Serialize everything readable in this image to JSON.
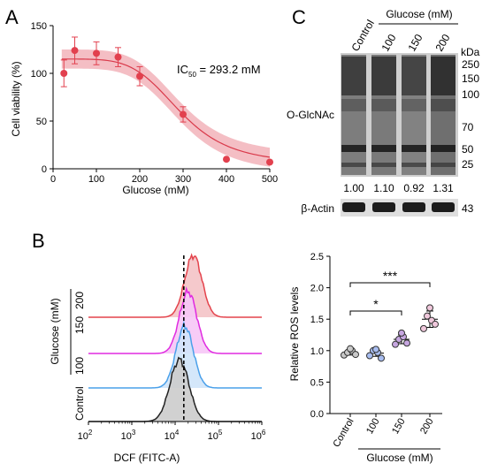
{
  "panels": {
    "A": "A",
    "B": "B",
    "C": "C"
  },
  "colors": {
    "fit_line": "#d9394a",
    "fit_band": "#f2b3ba",
    "point": "#e2404e",
    "hist_red": "#e4434c",
    "hist_red_fill": "#f4c3c6",
    "hist_magenta": "#e02be0",
    "hist_magenta_fill": "#f6c6f6",
    "hist_blue": "#4aa0ea",
    "hist_blue_fill": "#cfe4fa",
    "hist_black": "#222222",
    "hist_black_fill": "#cccccc",
    "dot_grey": "#c9c9c9",
    "dot_blue": "#a8bdf0",
    "dot_purple": "#c6a6e0",
    "dot_pink": "#f0c8dc"
  },
  "chart_data": [
    {
      "id": "A",
      "type": "scatter",
      "title": "",
      "xlabel": "Glucose (mM)",
      "ylabel": "Cell viability (%)",
      "xlim": [
        0,
        500
      ],
      "ylim": [
        0,
        150
      ],
      "xticks": [
        0,
        100,
        200,
        300,
        400,
        500
      ],
      "yticks": [
        0,
        50,
        100,
        150
      ],
      "annotation": {
        "prefix": "IC",
        "sub": "50",
        "text": " = 293.2 mM"
      },
      "x": [
        25,
        50,
        100,
        150,
        200,
        300,
        400,
        500
      ],
      "y": [
        100,
        124,
        121,
        117,
        97,
        57,
        10,
        7
      ],
      "err": [
        14,
        14,
        12,
        10,
        10,
        8,
        0,
        0
      ],
      "fit": {
        "top": 115,
        "bottom": 5,
        "ic50": 293.2,
        "hill": 5,
        "band": 10
      },
      "grid": false
    },
    {
      "id": "B",
      "type": "area",
      "title": "",
      "xlabel": "DCF (FITC-A)",
      "ylabel": "",
      "xlim_log10": [
        2,
        6
      ],
      "xticks": [
        {
          "base": "10",
          "exp": "2"
        },
        {
          "base": "10",
          "exp": "3"
        },
        {
          "base": "10",
          "exp": "4"
        },
        {
          "base": "10",
          "exp": "5"
        },
        {
          "base": "10",
          "exp": "6"
        }
      ],
      "side_labels": [
        "Control",
        "100",
        "150",
        "200"
      ],
      "group_label": "Glucose (mM)",
      "series": [
        {
          "name": "Control",
          "peak_log10": 4.1,
          "sigma": 0.22
        },
        {
          "name": "100",
          "peak_log10": 4.22,
          "sigma": 0.2
        },
        {
          "name": "150",
          "peak_log10": 4.3,
          "sigma": 0.2
        },
        {
          "name": "200",
          "peak_log10": 4.42,
          "sigma": 0.2
        }
      ],
      "dashed_line_log10": 4.2,
      "grid": false
    },
    {
      "id": "C",
      "type": "table",
      "treatment_label": "Glucose (mM)",
      "lanes": [
        "Control",
        "100",
        "150",
        "200"
      ],
      "blot_label": "O-GlcNAc",
      "loading_label": "β-Actin",
      "kda_header": "kDa",
      "kda_markers": [
        "250",
        "150",
        "100",
        "70",
        "50",
        "25"
      ],
      "actin_kda": "43",
      "densitometry": [
        "1.00",
        "1.10",
        "0.92",
        "1.31"
      ]
    },
    {
      "id": "ROS",
      "type": "scatter",
      "title": "",
      "xlabel": "Glucose (mM)",
      "ylabel": "Relative ROS levels",
      "categories": [
        "Control",
        "100",
        "150",
        "200"
      ],
      "ylim": [
        0,
        2.5
      ],
      "yticks": [
        "0.0",
        "0.5",
        "1.0",
        "1.5",
        "2.0",
        "2.5"
      ],
      "points": [
        [
          0.93,
          0.97,
          1.0,
          0.94,
          1.03
        ],
        [
          0.92,
          1.0,
          0.97,
          0.88,
          1.02
        ],
        [
          1.1,
          1.18,
          1.22,
          1.12,
          1.28
        ],
        [
          1.35,
          1.55,
          1.48,
          1.42,
          1.68
        ]
      ],
      "means": [
        0.97,
        0.96,
        1.18,
        1.5
      ],
      "sd": [
        0.04,
        0.05,
        0.07,
        0.13
      ],
      "significance": [
        {
          "from": "Control",
          "to": "150",
          "label": "*"
        },
        {
          "from": "Control",
          "to": "200",
          "label": "***"
        }
      ],
      "grid": false
    }
  ]
}
